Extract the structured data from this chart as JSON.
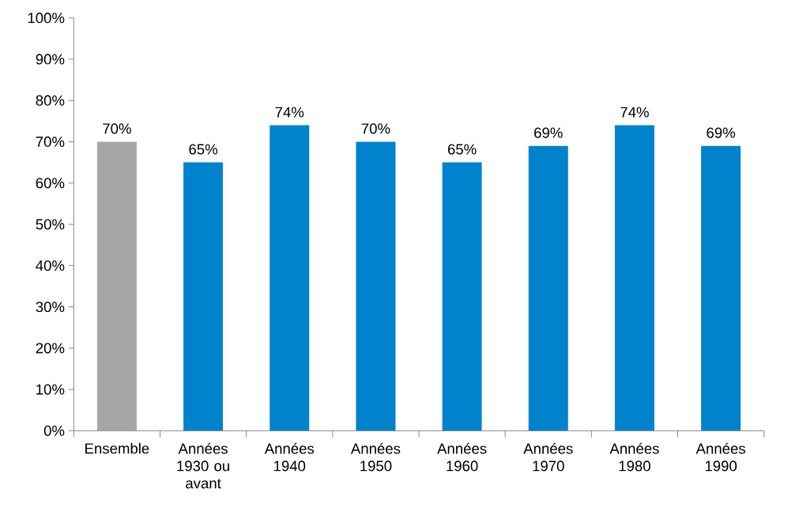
{
  "chart_data": {
    "type": "bar",
    "categories": [
      "Ensemble",
      "Années 1930 ou avant",
      "Années 1940",
      "Années 1950",
      "Années 1960",
      "Années 1970",
      "Années 1980",
      "Années 1990"
    ],
    "values": [
      70,
      65,
      74,
      70,
      65,
      69,
      74,
      69
    ],
    "value_labels": [
      "70%",
      "65%",
      "74%",
      "70%",
      "65%",
      "69%",
      "74%",
      "69%"
    ],
    "colors": [
      "#a6a6a6",
      "#0083cc",
      "#0083cc",
      "#0083cc",
      "#0083cc",
      "#0083cc",
      "#0083cc",
      "#0083cc"
    ],
    "ylim": [
      0,
      100
    ],
    "yticks": [
      {
        "value": 0,
        "label": "0%"
      },
      {
        "value": 10,
        "label": "10%"
      },
      {
        "value": 20,
        "label": "20%"
      },
      {
        "value": 30,
        "label": "30%"
      },
      {
        "value": 40,
        "label": "40%"
      },
      {
        "value": 50,
        "label": "50%"
      },
      {
        "value": 60,
        "label": "60%"
      },
      {
        "value": 70,
        "label": "70%"
      },
      {
        "value": 80,
        "label": "80%"
      },
      {
        "value": 90,
        "label": "90%"
      },
      {
        "value": 100,
        "label": "100%"
      }
    ],
    "grid": false
  }
}
